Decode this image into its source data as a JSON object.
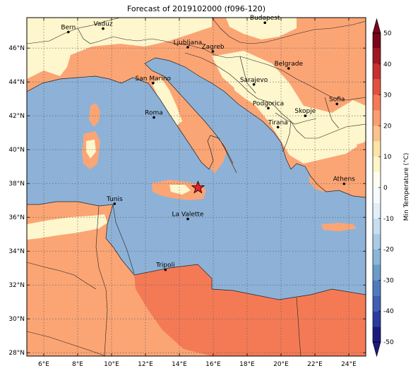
{
  "title": "Forecast of 2019102000 (f096-120)",
  "chart_data": {
    "type": "map",
    "variable": "Min Temperature (°C)",
    "colorbar": {
      "label": "Min Temperature (°C)",
      "ticks": [
        -50,
        -40,
        -30,
        -20,
        -10,
        0,
        10,
        20,
        30,
        40,
        50
      ],
      "levels": [
        -50,
        -45,
        -40,
        -35,
        -30,
        -25,
        -20,
        -15,
        -10,
        -5,
        0,
        5,
        10,
        15,
        20,
        25,
        30,
        35,
        40,
        45,
        50
      ],
      "colors": [
        "#1a1a7e",
        "#2b3a9e",
        "#3e5fb4",
        "#4e7bbd",
        "#6a9bc9",
        "#8bb6d8",
        "#aacbe3",
        "#c8def0",
        "#e3eff8",
        "#f5fbff",
        "#fffdf0",
        "#fef6c8",
        "#fde3a6",
        "#fdc28a",
        "#fb9e6e",
        "#f47a56",
        "#e2513d",
        "#c8302e",
        "#a01822",
        "#7a0619"
      ],
      "extend": "both"
    },
    "xaxis": {
      "ticks": [
        "6°E",
        "8°E",
        "10°E",
        "12°E",
        "14°E",
        "16°E",
        "18°E",
        "20°E",
        "22°E",
        "24°E"
      ],
      "values": [
        6,
        8,
        10,
        12,
        14,
        16,
        18,
        20,
        22,
        24
      ],
      "range": [
        5,
        25
      ]
    },
    "yaxis": {
      "ticks": [
        "28°N",
        "30°N",
        "32°N",
        "34°N",
        "36°N",
        "38°N",
        "40°N",
        "42°N",
        "44°N",
        "46°N"
      ],
      "values": [
        28,
        30,
        32,
        34,
        36,
        38,
        40,
        42,
        44,
        46
      ],
      "range": [
        27.8,
        47.8
      ]
    },
    "grid": true,
    "cities": [
      {
        "name": "Bern",
        "lon": 7.45,
        "lat": 46.95
      },
      {
        "name": "Vaduz",
        "lon": 9.5,
        "lat": 47.15
      },
      {
        "name": "Budapest",
        "lon": 19.05,
        "lat": 47.5
      },
      {
        "name": "Ljubljana",
        "lon": 14.5,
        "lat": 46.05
      },
      {
        "name": "Zagreb",
        "lon": 15.98,
        "lat": 45.8
      },
      {
        "name": "Belgrade",
        "lon": 20.45,
        "lat": 44.8
      },
      {
        "name": "Sarajevo",
        "lon": 18.4,
        "lat": 43.85
      },
      {
        "name": "San Marino",
        "lon": 12.45,
        "lat": 43.93
      },
      {
        "name": "Sofia",
        "lon": 23.3,
        "lat": 42.7
      },
      {
        "name": "Podgorica",
        "lon": 19.25,
        "lat": 42.45
      },
      {
        "name": "Skopje",
        "lon": 21.43,
        "lat": 42.0
      },
      {
        "name": "Roma",
        "lon": 12.5,
        "lat": 41.9
      },
      {
        "name": "Tirana",
        "lon": 19.82,
        "lat": 41.33
      },
      {
        "name": "Athens",
        "lon": 23.72,
        "lat": 37.98
      },
      {
        "name": "Tunis",
        "lon": 10.18,
        "lat": 36.8
      },
      {
        "name": "La Valette",
        "lon": 14.5,
        "lat": 35.9
      },
      {
        "name": "Tripoli",
        "lon": 13.18,
        "lat": 32.9
      }
    ],
    "marker": {
      "symbol": "star",
      "lon": 15.1,
      "lat": 37.75,
      "color": "#e8202a"
    }
  }
}
